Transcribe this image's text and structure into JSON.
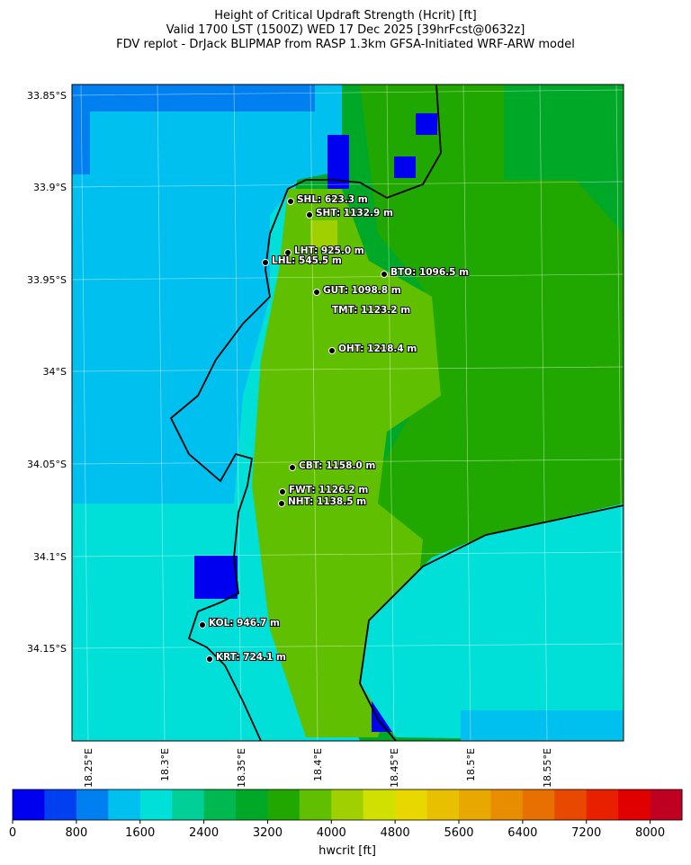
{
  "title": [
    "Height of Critical Updraft Strength (Hcrit) [ft]",
    "Valid 1700 LST (1500Z) WED 17 Dec 2025 [39hrFcst@0632z]",
    "FDV replot - DrJack BLIPMAP from RASP 1.3km GFSA-Initiated WRF-ARW model"
  ],
  "lat_labels": [
    "33.85°S",
    "33.9°S",
    "33.95°S",
    "34°S",
    "34.05°S",
    "34.1°S",
    "34.15°S"
  ],
  "lon_labels": [
    "18.25°E",
    "18.3°E",
    "18.35°E",
    "18.4°E",
    "18.45°E",
    "18.5°E",
    "18.55°E"
  ],
  "stations": [
    "SHL: 623.3 m",
    "SHT: 1132.9 m",
    "LHT: 925.0 m",
    "LHL: 545.5 m",
    "BTO: 1096.5 m",
    "GUT: 1098.8 m",
    "TMT: 1123.2 m",
    "OHT: 1218.4 m",
    "CBT: 1158.0 m",
    "FWT: 1126.2 m",
    "NHT: 1138.5 m",
    "KOL: 946.7 m",
    "KRT: 724.1 m"
  ],
  "colorbar": {
    "label": "hwcrit [ft]",
    "lim": [
      0,
      8400
    ],
    "ticks": [
      0,
      800,
      1600,
      2400,
      3200,
      4000,
      4800,
      5600,
      6400,
      7200,
      8000
    ],
    "colors": [
      "#0000f0",
      "#0040f0",
      "#0080f0",
      "#00c0f0",
      "#00e0d8",
      "#00d098",
      "#00b850",
      "#00a828",
      "#20a800",
      "#60c000",
      "#a0d000",
      "#d0e000",
      "#e8d800",
      "#e8c000",
      "#e8a800",
      "#e88c00",
      "#e87000",
      "#e84800",
      "#e82000",
      "#e00000",
      "#c00020"
    ]
  }
}
